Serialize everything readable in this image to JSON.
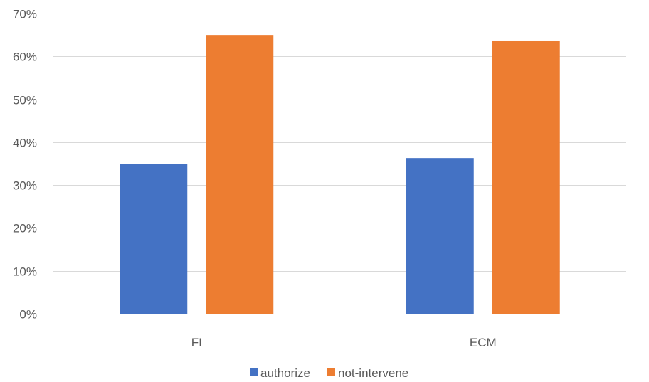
{
  "chart_data": {
    "type": "bar",
    "title": "",
    "xlabel": "",
    "ylabel": "",
    "categories": [
      "FI",
      "ECM"
    ],
    "series": [
      {
        "name": "authorize",
        "values": [
          35,
          36.3
        ],
        "color": "#4472C4"
      },
      {
        "name": "not-intervene",
        "values": [
          65,
          63.7
        ],
        "color": "#ED7D31"
      }
    ],
    "ylim": [
      0,
      70
    ],
    "yticks": [
      0,
      10,
      20,
      30,
      40,
      50,
      60,
      70
    ],
    "ytick_labels": [
      "0%",
      "10%",
      "20%",
      "30%",
      "40%",
      "50%",
      "60%",
      "70%"
    ],
    "grid": true,
    "legend_position": "bottom"
  }
}
